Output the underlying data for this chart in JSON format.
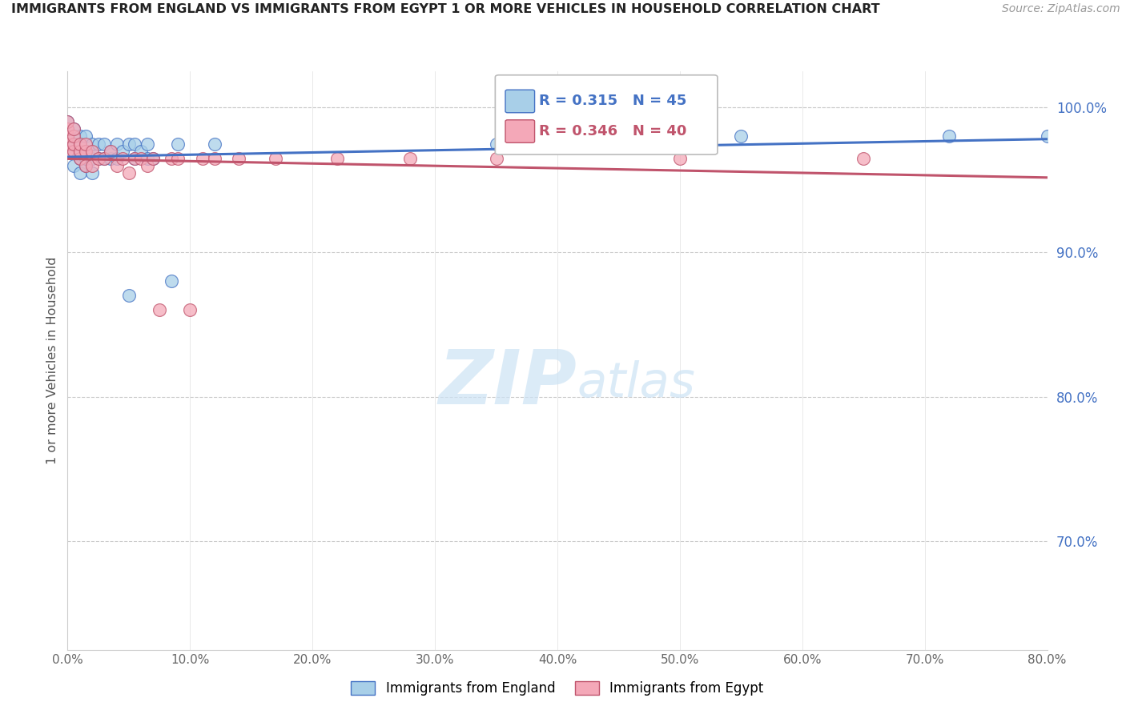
{
  "title": "IMMIGRANTS FROM ENGLAND VS IMMIGRANTS FROM EGYPT 1 OR MORE VEHICLES IN HOUSEHOLD CORRELATION CHART",
  "source": "Source: ZipAtlas.com",
  "ylabel": "1 or more Vehicles in Household",
  "legend_england": "Immigrants from England",
  "legend_egypt": "Immigrants from Egypt",
  "R_england": 0.315,
  "N_england": 45,
  "R_egypt": 0.346,
  "N_egypt": 40,
  "xlim": [
    0.0,
    0.8
  ],
  "ylim": [
    0.625,
    1.025
  ],
  "xticks": [
    0.0,
    0.1,
    0.2,
    0.3,
    0.4,
    0.5,
    0.6,
    0.7,
    0.8
  ],
  "yticks": [
    0.7,
    0.8,
    0.9,
    1.0
  ],
  "color_england": "#a8cfe8",
  "color_egypt": "#f4a8b8",
  "trendline_england": "#4472c4",
  "trendline_egypt": "#c0546c",
  "watermark_zip": "ZIP",
  "watermark_atlas": "atlas",
  "england_x": [
    0.0,
    0.0,
    0.0,
    0.0,
    0.005,
    0.005,
    0.005,
    0.005,
    0.01,
    0.01,
    0.01,
    0.01,
    0.01,
    0.015,
    0.015,
    0.015,
    0.015,
    0.02,
    0.02,
    0.02,
    0.02,
    0.025,
    0.025,
    0.03,
    0.03,
    0.035,
    0.035,
    0.04,
    0.04,
    0.045,
    0.05,
    0.05,
    0.055,
    0.055,
    0.06,
    0.065,
    0.065,
    0.07,
    0.085,
    0.09,
    0.12,
    0.35,
    0.55,
    0.72,
    0.8
  ],
  "england_y": [
    0.97,
    0.975,
    0.98,
    0.99,
    0.96,
    0.97,
    0.975,
    0.985,
    0.955,
    0.965,
    0.97,
    0.975,
    0.98,
    0.96,
    0.965,
    0.97,
    0.98,
    0.955,
    0.965,
    0.97,
    0.975,
    0.965,
    0.975,
    0.965,
    0.975,
    0.965,
    0.97,
    0.965,
    0.975,
    0.97,
    0.87,
    0.975,
    0.965,
    0.975,
    0.97,
    0.965,
    0.975,
    0.965,
    0.88,
    0.975,
    0.975,
    0.975,
    0.98,
    0.98,
    0.98
  ],
  "egypt_x": [
    0.0,
    0.0,
    0.0,
    0.0,
    0.0,
    0.005,
    0.005,
    0.005,
    0.005,
    0.01,
    0.01,
    0.01,
    0.015,
    0.015,
    0.015,
    0.02,
    0.02,
    0.025,
    0.03,
    0.035,
    0.04,
    0.045,
    0.05,
    0.055,
    0.06,
    0.065,
    0.07,
    0.075,
    0.085,
    0.09,
    0.1,
    0.11,
    0.12,
    0.14,
    0.17,
    0.22,
    0.28,
    0.35,
    0.5,
    0.65
  ],
  "egypt_y": [
    0.97,
    0.975,
    0.98,
    0.985,
    0.99,
    0.97,
    0.975,
    0.98,
    0.985,
    0.965,
    0.97,
    0.975,
    0.96,
    0.97,
    0.975,
    0.96,
    0.97,
    0.965,
    0.965,
    0.97,
    0.96,
    0.965,
    0.955,
    0.965,
    0.965,
    0.96,
    0.965,
    0.86,
    0.965,
    0.965,
    0.86,
    0.965,
    0.965,
    0.965,
    0.965,
    0.965,
    0.965,
    0.965,
    0.965,
    0.965
  ]
}
